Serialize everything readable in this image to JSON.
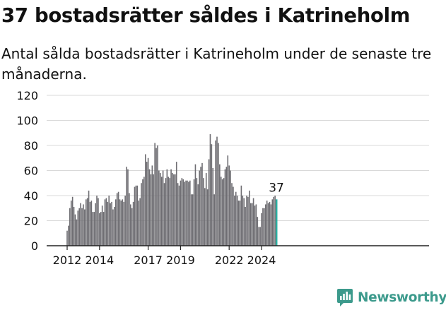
{
  "header": {
    "title": "37 bostadsrätter såldes i Katrineholm",
    "subtitle": "Antal sålda bostadsrätter i Katrineholm under de senaste tre månaderna."
  },
  "brand": {
    "name": "Newsworthy",
    "color": "#3c9a8c"
  },
  "colors": {
    "bar": "#6e6d72",
    "highlight": "#1aa89a",
    "grid": "#d9d9d9",
    "axis": "#222222",
    "text": "#111111"
  },
  "chart_data": {
    "type": "bar",
    "title": "37 bostadsrätter såldes i Katrineholm",
    "subtitle": "Antal sålda bostadsrätter i Katrineholm under de senaste tre månaderna.",
    "ylim": [
      0,
      120
    ],
    "yticks": [
      0,
      20,
      40,
      60,
      80,
      100,
      120
    ],
    "xticks": [
      2012,
      2014,
      2017,
      2019,
      2022,
      2024
    ],
    "grid": true,
    "legend": "none",
    "highlight_label": "37",
    "start": "2012-01",
    "interval": "month",
    "values": [
      12,
      16,
      30,
      36,
      39,
      31,
      25,
      21,
      28,
      30,
      34,
      30,
      33,
      29,
      37,
      38,
      44,
      35,
      36,
      27,
      27,
      34,
      40,
      38,
      26,
      27,
      32,
      27,
      37,
      38,
      35,
      40,
      34,
      35,
      29,
      31,
      37,
      42,
      43,
      37,
      36,
      37,
      35,
      40,
      63,
      61,
      42,
      33,
      30,
      35,
      47,
      48,
      48,
      36,
      38,
      50,
      53,
      55,
      73,
      67,
      70,
      61,
      57,
      64,
      57,
      82,
      78,
      80,
      60,
      58,
      55,
      60,
      50,
      54,
      61,
      55,
      54,
      61,
      58,
      57,
      57,
      67,
      50,
      48,
      52,
      54,
      53,
      51,
      52,
      52,
      51,
      52,
      41,
      41,
      53,
      65,
      54,
      49,
      60,
      63,
      66,
      54,
      46,
      58,
      45,
      69,
      89,
      81,
      62,
      41,
      84,
      87,
      82,
      65,
      55,
      53,
      54,
      61,
      63,
      72,
      64,
      60,
      50,
      47,
      40,
      43,
      40,
      36,
      36,
      48,
      40,
      38,
      31,
      40,
      39,
      44,
      34,
      34,
      38,
      32,
      33,
      23,
      15,
      15,
      26,
      30,
      30,
      33,
      36,
      34,
      35,
      33,
      37,
      39,
      40,
      37
    ]
  }
}
